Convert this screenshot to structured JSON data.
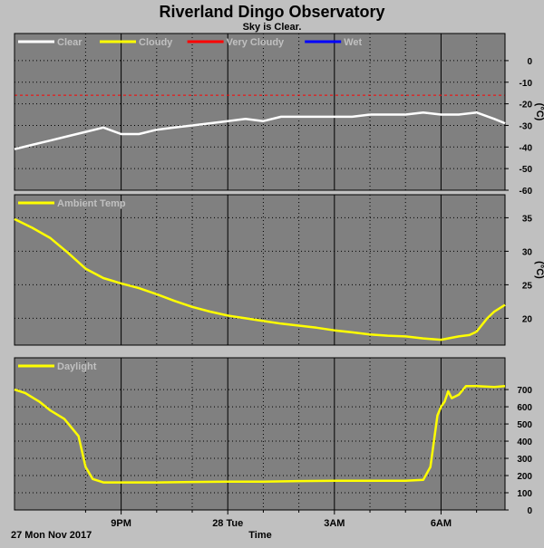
{
  "title": "Riverland Dingo Observatory",
  "subtitle": "Sky is Clear.",
  "date_label": "27 Mon Nov 2017",
  "time_label": "Time",
  "colors": {
    "background": "#c0c0c0",
    "plot_bg": "#808080",
    "grid": "#000000",
    "clear": "#ffffff",
    "cloudy": "#ffff00",
    "very_cloudy": "#ff0000",
    "wet": "#0000ff",
    "series_line": "#ffff00",
    "legend_text": "#c0c0c0"
  },
  "x_axis": {
    "ticks": [
      "9PM",
      "28 Tue",
      "3AM",
      "6AM"
    ],
    "range_hours": [
      18.0,
      31.8
    ],
    "tick_hours": [
      21,
      24,
      27,
      30
    ],
    "minor_hours": [
      20,
      22,
      23,
      25,
      26,
      28,
      29,
      31
    ]
  },
  "chart_data": [
    {
      "type": "line",
      "title": "",
      "legend": [
        "Clear",
        "Cloudy",
        "Very Cloudy",
        "Wet"
      ],
      "legend_colors": [
        "#ffffff",
        "#ffff00",
        "#ff0000",
        "#0000ff"
      ],
      "ylabel": "(°C)",
      "ylim": [
        -60,
        5
      ],
      "yticks": [
        0,
        -10,
        -20,
        -30,
        -40,
        -50,
        -60
      ],
      "threshold_line": -16,
      "series": [
        {
          "name": "Clear",
          "x": [
            18.0,
            18.5,
            19.0,
            19.5,
            20.0,
            20.5,
            21.0,
            21.5,
            22.0,
            22.5,
            23.0,
            23.5,
            24.0,
            24.5,
            25.0,
            25.5,
            26.0,
            26.5,
            27.0,
            27.5,
            28.0,
            28.5,
            29.0,
            29.5,
            30.0,
            30.5,
            31.0,
            31.5,
            31.8
          ],
          "values": [
            -41,
            -39,
            -37,
            -35,
            -33,
            -31,
            -34,
            -34,
            -32,
            -31,
            -30,
            -29,
            -28,
            -27,
            -28,
            -26,
            -26,
            -26,
            -26,
            -26,
            -25,
            -25,
            -25,
            -24,
            -25,
            -25,
            -24,
            -27,
            -29
          ]
        }
      ]
    },
    {
      "type": "line",
      "title": "",
      "legend": [
        "Ambient Temp"
      ],
      "legend_colors": [
        "#ffff00"
      ],
      "ylabel": "(°C)",
      "ylim": [
        16,
        36
      ],
      "yticks": [
        35,
        30,
        25,
        20
      ],
      "series": [
        {
          "name": "Ambient Temp",
          "x": [
            18.0,
            18.5,
            19.0,
            19.5,
            20.0,
            20.5,
            21.0,
            21.5,
            22.0,
            22.5,
            23.0,
            23.5,
            24.0,
            24.5,
            25.0,
            25.5,
            26.0,
            26.5,
            27.0,
            27.5,
            28.0,
            28.5,
            29.0,
            29.5,
            30.0,
            30.5,
            30.8,
            31.0,
            31.3,
            31.5,
            31.8
          ],
          "values": [
            34.8,
            33.5,
            32.0,
            29.8,
            27.4,
            26.0,
            25.2,
            24.5,
            23.6,
            22.6,
            21.7,
            21.0,
            20.4,
            20.0,
            19.6,
            19.2,
            18.9,
            18.6,
            18.2,
            17.9,
            17.6,
            17.4,
            17.3,
            17.0,
            16.8,
            17.3,
            17.5,
            18.0,
            20.0,
            21.0,
            22.0
          ]
        }
      ]
    },
    {
      "type": "line",
      "title": "",
      "legend": [
        "Daylight"
      ],
      "legend_colors": [
        "#ffff00"
      ],
      "ylabel": "",
      "ylim": [
        0,
        790
      ],
      "yticks": [
        700,
        600,
        500,
        400,
        300,
        200,
        100,
        0
      ],
      "series": [
        {
          "name": "Daylight",
          "x": [
            18.0,
            18.3,
            18.7,
            19.0,
            19.4,
            19.8,
            20.0,
            20.2,
            20.5,
            21.0,
            22.0,
            23.0,
            24.0,
            25.0,
            26.0,
            27.0,
            28.0,
            29.0,
            29.5,
            29.7,
            29.8,
            29.9,
            30.0,
            30.1,
            30.2,
            30.3,
            30.5,
            30.7,
            31.0,
            31.5,
            31.8
          ],
          "values": [
            700,
            680,
            630,
            580,
            530,
            430,
            250,
            180,
            160,
            160,
            160,
            163,
            165,
            165,
            168,
            170,
            170,
            170,
            175,
            250,
            400,
            550,
            600,
            630,
            690,
            650,
            670,
            720,
            720,
            715,
            720
          ]
        }
      ]
    }
  ]
}
